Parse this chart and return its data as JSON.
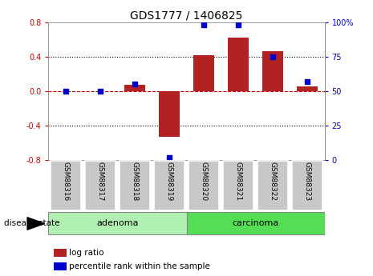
{
  "title": "GDS1777 / 1406825",
  "samples": [
    "GSM88316",
    "GSM88317",
    "GSM88318",
    "GSM88319",
    "GSM88320",
    "GSM88321",
    "GSM88322",
    "GSM88323"
  ],
  "log_ratio": [
    0.0,
    0.0,
    0.07,
    -0.53,
    0.42,
    0.62,
    0.46,
    0.05
  ],
  "percentile_rank": [
    50,
    50,
    55,
    2,
    98,
    98,
    75,
    57
  ],
  "groups": [
    {
      "label": "adenoma",
      "start": 0,
      "end": 4,
      "color": "#90EE90"
    },
    {
      "label": "carcinoma",
      "start": 4,
      "end": 8,
      "color": "#5CD65C"
    }
  ],
  "bar_color": "#B22222",
  "dot_color": "#0000CD",
  "ylim_left": [
    -0.8,
    0.8
  ],
  "ylim_right": [
    0,
    100
  ],
  "yticks_left": [
    -0.8,
    -0.4,
    0.0,
    0.4,
    0.8
  ],
  "ytick_labels_left": [
    "-0.8",
    "-0.4",
    "0.0",
    "0.4",
    "0.8"
  ],
  "yticks_right": [
    0,
    25,
    50,
    75,
    100
  ],
  "ytick_labels_right": [
    "0",
    "25",
    "50",
    "75",
    "100%"
  ],
  "bg_color": "#ffffff",
  "label_log_ratio": "log ratio",
  "label_percentile": "percentile rank within the sample",
  "disease_state_label": "disease state",
  "title_fontsize": 10,
  "tick_fontsize": 7,
  "sample_box_color": "#C8C8C8",
  "adenoma_color": "#B0F0B0",
  "carcinoma_color": "#55DD55"
}
